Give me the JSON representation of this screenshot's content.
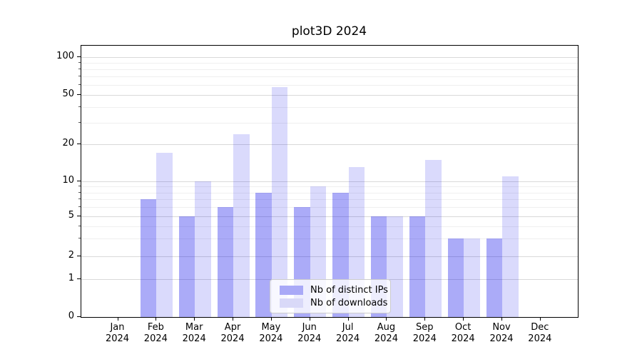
{
  "title": "plot3D 2024",
  "y_axis": {
    "tick_labels": [
      "100",
      "50",
      "20",
      "10",
      "5",
      "2",
      "1",
      "0"
    ],
    "tick_values": [
      100,
      50,
      20,
      10,
      5,
      2,
      1,
      0
    ]
  },
  "x_axis": {
    "months": [
      "Jan",
      "Feb",
      "Mar",
      "Apr",
      "May",
      "Jun",
      "Jul",
      "Aug",
      "Sep",
      "Oct",
      "Nov",
      "Dec"
    ],
    "year": "2024"
  },
  "legend": {
    "items": [
      {
        "label": "Nb of distinct IPs",
        "color_hex": "#a9a9f7",
        "fill": "rgba(10,10,235,0.34)"
      },
      {
        "label": "Nb of downloads",
        "color_hex": "#d9d9f8",
        "fill": "rgba(10,10,235,0.15)"
      }
    ]
  },
  "chart_data": {
    "type": "bar",
    "title": "plot3D 2024",
    "categories": [
      "Jan 2024",
      "Feb 2024",
      "Mar 2024",
      "Apr 2024",
      "May 2024",
      "Jun 2024",
      "Jul 2024",
      "Aug 2024",
      "Sep 2024",
      "Oct 2024",
      "Nov 2024",
      "Dec 2024"
    ],
    "series": [
      {
        "name": "Nb of distinct IPs",
        "values": [
          0,
          7,
          5,
          6,
          8,
          6,
          8,
          5,
          5,
          3,
          3,
          0
        ]
      },
      {
        "name": "Nb of downloads",
        "values": [
          0,
          17,
          10,
          24,
          58,
          9,
          13,
          5,
          15,
          3,
          11,
          0
        ]
      }
    ],
    "xlabel": "",
    "ylabel": "",
    "yscale": "log-like",
    "y_major_ticks": [
      0,
      1,
      2,
      5,
      10,
      20,
      50,
      100
    ],
    "y_minor_gridlines": [
      3,
      4,
      6,
      7,
      8,
      9,
      30,
      40,
      60,
      70,
      80,
      90
    ],
    "ylim": [
      0,
      125
    ],
    "grid": true,
    "legend_position": "lower center"
  }
}
